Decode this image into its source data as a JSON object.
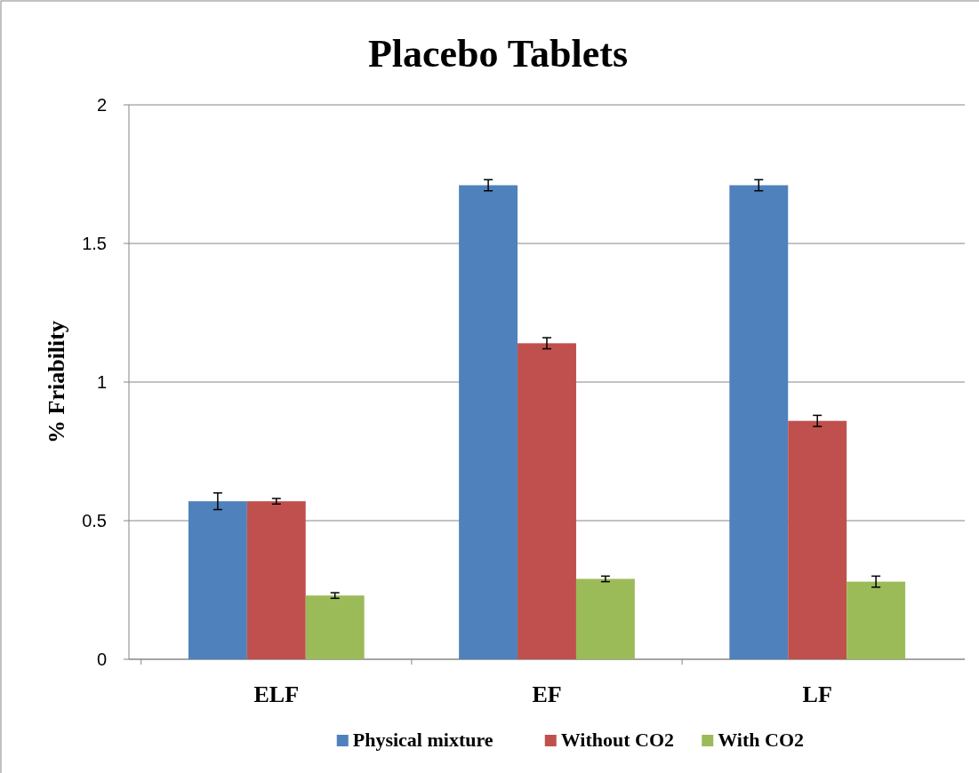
{
  "chart_data": {
    "type": "bar",
    "title": "Placebo Tablets",
    "ylabel": "% Friability",
    "categories": [
      "ELF",
      "EF",
      "LF"
    ],
    "series": [
      {
        "name": "Physical mixture",
        "color": "#4f81bd",
        "values": [
          0.57,
          1.71,
          1.71
        ],
        "errors": [
          0.03,
          0.02,
          0.02
        ]
      },
      {
        "name": "Without CO2",
        "color": "#c0504d",
        "values": [
          0.57,
          1.14,
          0.86
        ],
        "errors": [
          0.01,
          0.02,
          0.02
        ]
      },
      {
        "name": "With CO2",
        "color": "#9bbb59",
        "values": [
          0.23,
          0.29,
          0.28
        ],
        "errors": [
          0.01,
          0.01,
          0.02
        ]
      }
    ],
    "ylim": [
      0,
      2
    ],
    "yticks": [
      0,
      0.5,
      1,
      1.5,
      2
    ],
    "grid": "y",
    "legend": "bottom"
  }
}
